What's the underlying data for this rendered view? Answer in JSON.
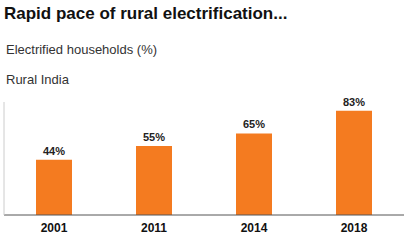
{
  "chart_data": {
    "type": "bar",
    "title": "Rapid pace of rural electrification...",
    "subtitle": "Electrified households (%)",
    "annotation": "Rural India",
    "categories": [
      "2001",
      "2011",
      "2014",
      "2018"
    ],
    "values": [
      44,
      55,
      65,
      83
    ],
    "value_labels": [
      "44%",
      "55%",
      "65%",
      "83%"
    ],
    "color": "#f47b20",
    "ylim": [
      0,
      90
    ],
    "grid": false,
    "data_labels": true,
    "tick_labels": "x"
  }
}
